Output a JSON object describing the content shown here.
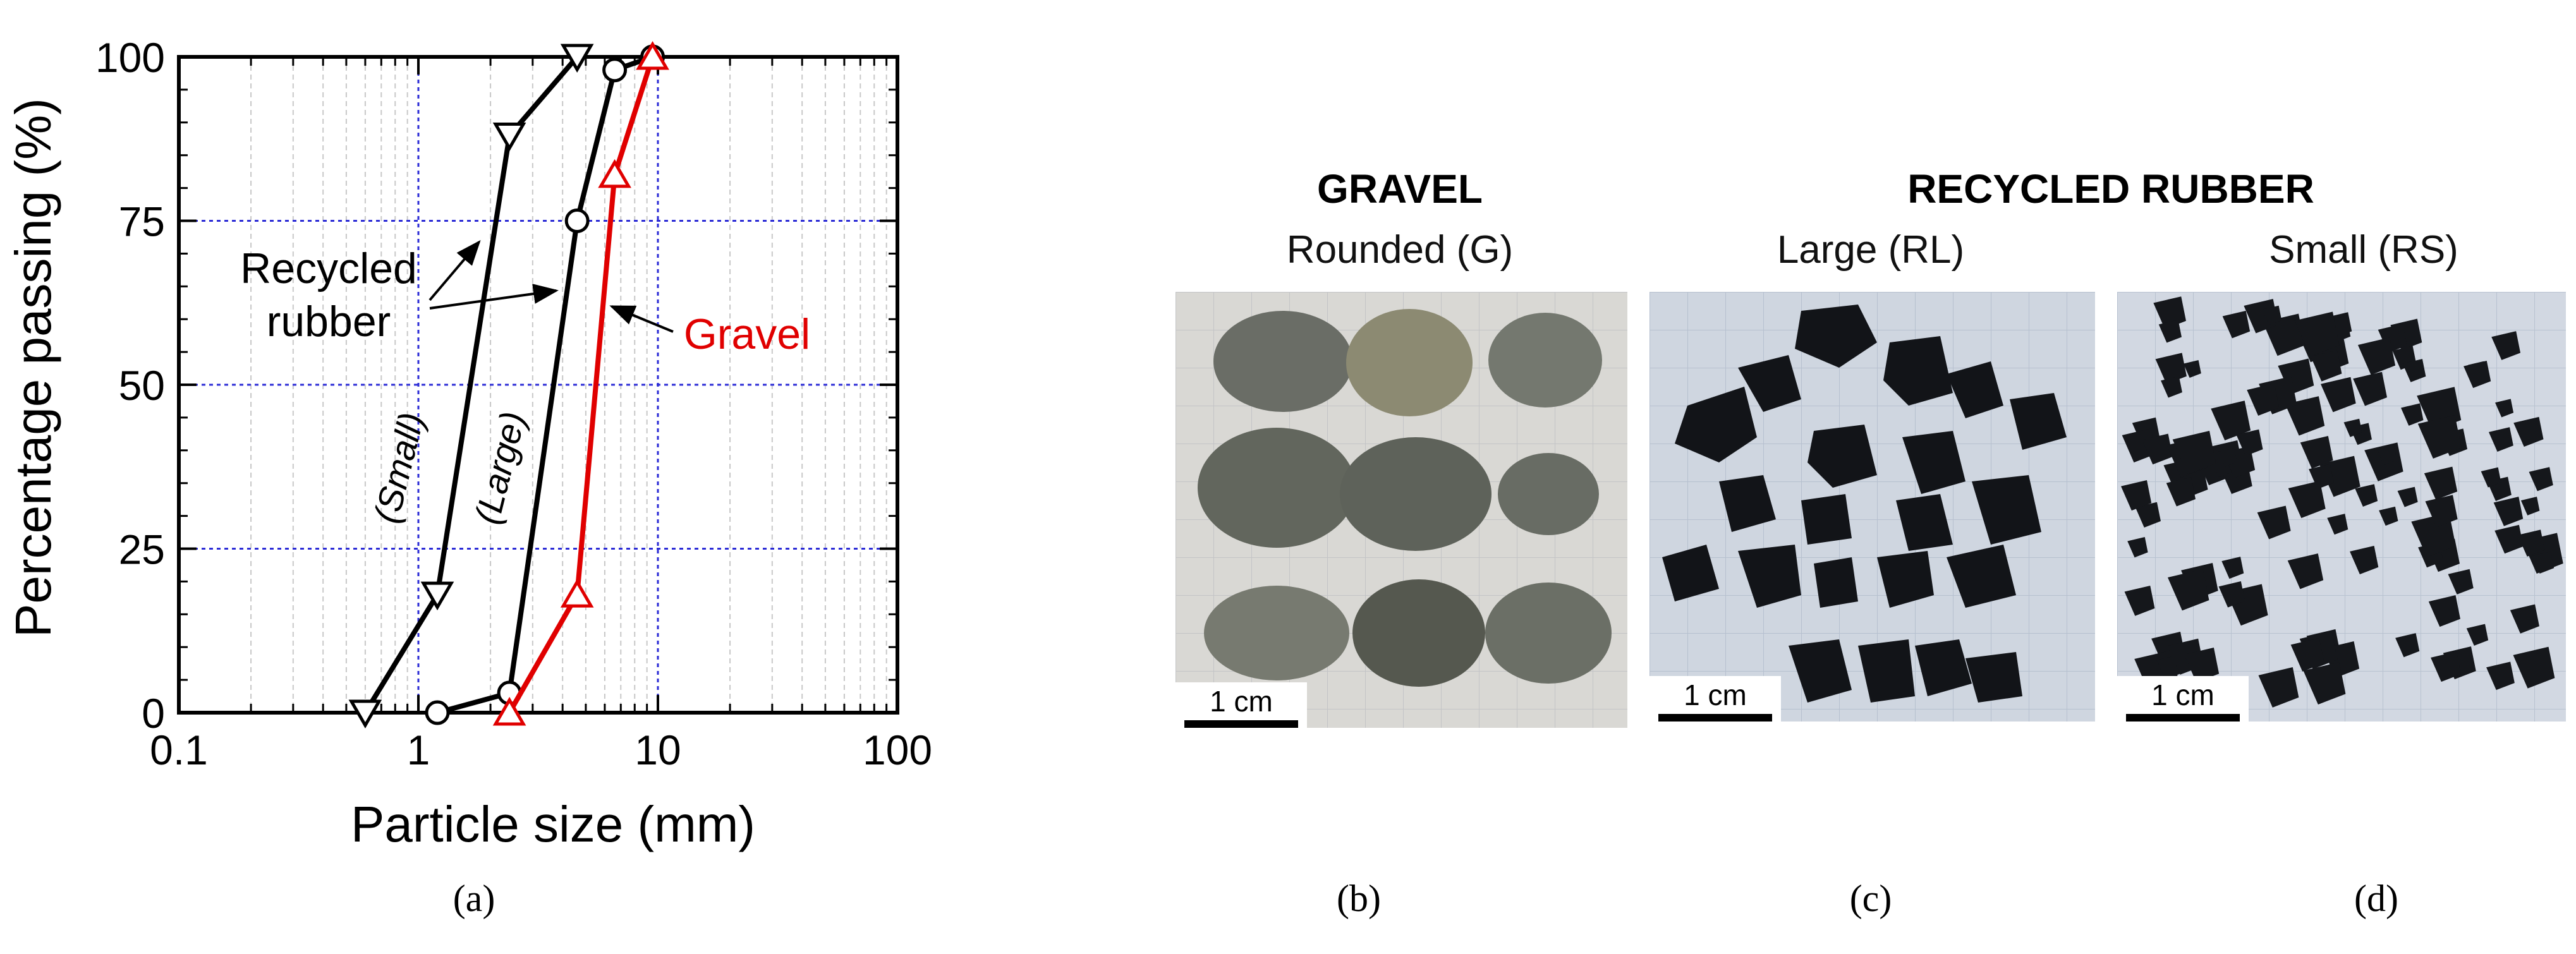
{
  "chart_data": {
    "type": "line",
    "xscale": "log",
    "xlabel": "Particle size (mm)",
    "ylabel": "Percentage passing (%)",
    "xlim": [
      0.1,
      100
    ],
    "ylim": [
      0,
      100
    ],
    "xticks": [
      "0.1",
      "1",
      "10",
      "100"
    ],
    "yticks": [
      "0",
      "25",
      "50",
      "75",
      "100"
    ],
    "grid": true,
    "series": [
      {
        "name": "Recycled rubber (Small)",
        "color": "#000000",
        "marker": "triangle-down",
        "x": [
          0.6,
          1.2,
          2.4,
          4.6
        ],
        "y": [
          0,
          18,
          88,
          100
        ]
      },
      {
        "name": "Recycled rubber (Large)",
        "color": "#000000",
        "marker": "circle",
        "x": [
          1.2,
          2.4,
          4.6,
          6.6,
          9.5
        ],
        "y": [
          0,
          3,
          75,
          98,
          100
        ]
      },
      {
        "name": "Gravel",
        "color": "#e00000",
        "marker": "triangle-up",
        "x": [
          2.4,
          4.6,
          6.6,
          9.5
        ],
        "y": [
          0,
          18,
          82,
          100
        ]
      }
    ],
    "annotations": {
      "rubber_line1": "Recycled",
      "rubber_line2": "rubber",
      "small": "(Small)",
      "large": "(Large)",
      "gravel": "Gravel"
    }
  },
  "panels": {
    "a": "(a)",
    "b": "(b)",
    "c": "(c)",
    "d": "(d)"
  },
  "photos": {
    "gravel_heading": "GRAVEL",
    "rubber_heading": "RECYCLED RUBBER",
    "gravel_caption": "Rounded (G)",
    "large_caption": "Large (RL)",
    "small_caption": "Small (RS)",
    "scale_label": "1 cm"
  }
}
